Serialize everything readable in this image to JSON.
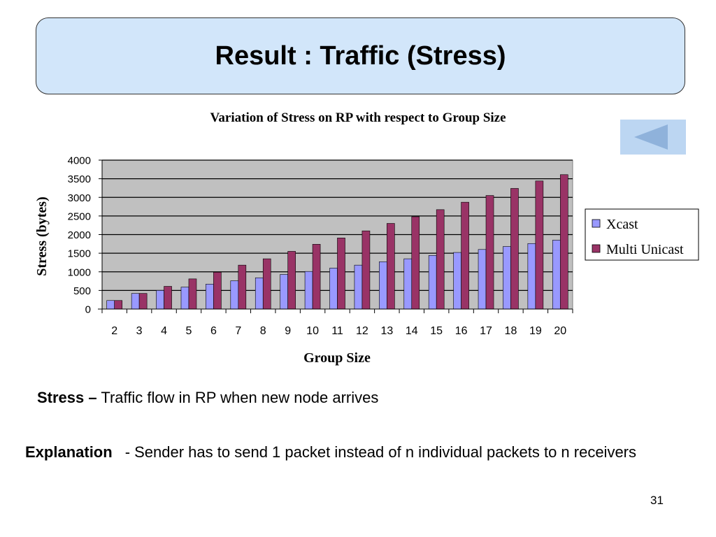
{
  "slide": {
    "title": "Result : Traffic (Stress)",
    "stress_term": "Stress –",
    "stress_text": "Traffic flow in RP when new node arrives",
    "explanation_term": "Explanation",
    "explanation_text": "- Sender has to send 1 packet instead of n individual packets to n receivers",
    "page_number": "31"
  },
  "colors": {
    "title_bg": "#d2e6fa",
    "plot_bg": "#c0c0c0",
    "xcast": "#9999ff",
    "multi_unicast": "#993366",
    "back_button": "#bcd6f2",
    "back_arrow": "#8fb2db"
  },
  "chart_data": {
    "type": "bar",
    "title": "Variation of Stress on RP with respect to Group Size",
    "xlabel": "Group Size",
    "ylabel": "Stress (bytes)",
    "ylim": [
      0,
      4000
    ],
    "yticks": [
      0,
      500,
      1000,
      1500,
      2000,
      2500,
      3000,
      3500,
      4000
    ],
    "grid": true,
    "legend_position": "right",
    "categories": [
      "2",
      "3",
      "4",
      "5",
      "6",
      "7",
      "8",
      "9",
      "10",
      "11",
      "12",
      "13",
      "14",
      "15",
      "16",
      "17",
      "18",
      "19",
      "20"
    ],
    "series": [
      {
        "name": "Xcast",
        "values": [
          230,
          420,
          500,
          590,
          670,
          760,
          840,
          930,
          1010,
          1100,
          1180,
          1270,
          1350,
          1440,
          1520,
          1600,
          1680,
          1760,
          1850
        ]
      },
      {
        "name": "Multi Unicast",
        "values": [
          230,
          420,
          610,
          810,
          990,
          1180,
          1350,
          1550,
          1740,
          1910,
          2100,
          2300,
          2480,
          2670,
          2870,
          3050,
          3240,
          3440,
          3610
        ]
      }
    ]
  }
}
